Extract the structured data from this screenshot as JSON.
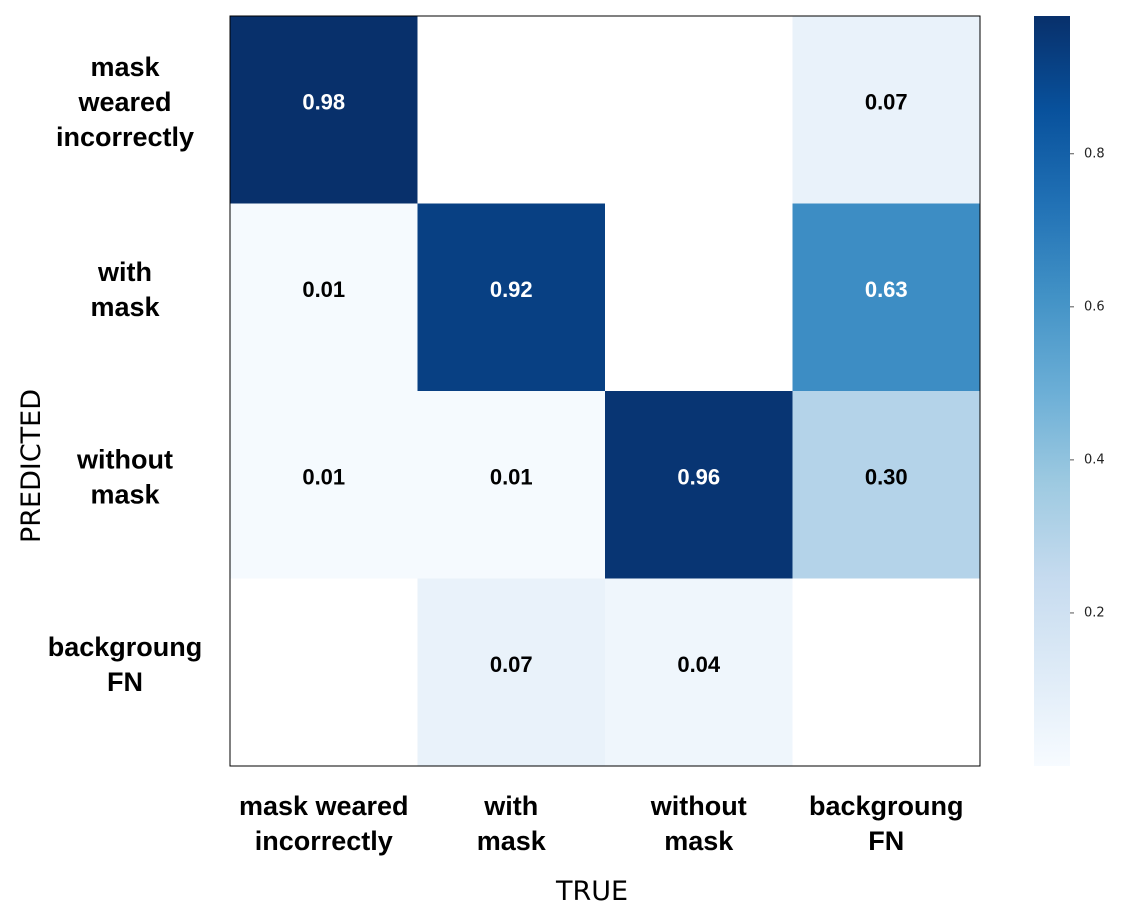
{
  "chart_data": {
    "type": "heatmap",
    "title": "",
    "xlabel": "TRUE",
    "ylabel": "PREDICTED",
    "x_categories": [
      [
        "mask weared",
        "incorrectly"
      ],
      [
        "with",
        "mask"
      ],
      [
        "without",
        "mask"
      ],
      [
        "backgroung",
        "FN"
      ]
    ],
    "y_categories": [
      [
        "mask",
        "weared",
        "incorrectly"
      ],
      [
        "with",
        "mask"
      ],
      [
        "without",
        "mask"
      ],
      [
        "backgroung",
        "FN"
      ]
    ],
    "values": [
      [
        0.98,
        null,
        null,
        0.07
      ],
      [
        0.01,
        0.92,
        null,
        0.63
      ],
      [
        0.01,
        0.01,
        0.96,
        0.3
      ],
      [
        null,
        0.07,
        0.04,
        null
      ]
    ],
    "value_labels": [
      [
        "0.98",
        "",
        "",
        "0.07"
      ],
      [
        "0.01",
        "0.92",
        "",
        "0.63"
      ],
      [
        "0.01",
        "0.01",
        "0.96",
        "0.30"
      ],
      [
        "",
        "0.07",
        "0.04",
        ""
      ]
    ],
    "colorbar": {
      "colormap": "Blues",
      "range": [
        0,
        0.98
      ],
      "ticks": [
        0.2,
        0.4,
        0.6,
        0.8
      ],
      "tick_labels": [
        "0.2",
        "0.4",
        "0.6",
        "0.8"
      ]
    }
  }
}
